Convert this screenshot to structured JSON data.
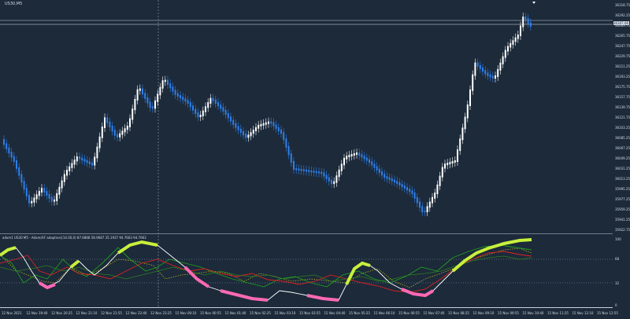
{
  "symbol_label": "US30,M5",
  "indicator_label": "adxm1 US30 M5 - Adxm(AF adaptive)(14.00,0) 87.6868 58.9687 35.1937 94.7663 94.7663",
  "current_price": "36307.66",
  "price_axis": [
    "36318.75",
    "36292.25",
    "36283.75",
    "36265.75",
    "36247.75",
    "36229.75",
    "36211.25",
    "36193.25",
    "36175.75",
    "36157.75",
    "36139.75",
    "36121.75",
    "36103.25",
    "36085.25",
    "36067.25",
    "36049.25",
    "36031.25",
    "36013.25",
    "35995.25",
    "35977.25",
    "35959.25",
    "35941.25",
    "35922.75"
  ],
  "indicator_axis": [
    "100",
    "68",
    "32",
    "0"
  ],
  "time_axis": [
    "12 Nov 2021",
    "12 Nov 19:40",
    "12 Nov 20:25",
    "12 Nov 21:10",
    "12 Nov 21:55",
    "12 Nov 22:40",
    "12 Nov 23:25",
    "15 Nov 00:10",
    "15 Nov 00:55",
    "15 Nov 01:40",
    "15 Nov 02:25",
    "15 Nov 03:10",
    "15 Nov 03:55",
    "15 Nov 04:40",
    "15 Nov 05:25",
    "15 Nov 06:10",
    "15 Nov 06:55",
    "15 Nov 07:40",
    "15 Nov 08:25",
    "15 Nov 09:10",
    "15 Nov 09:55",
    "15 Nov 10:40",
    "15 Nov 11:25",
    "15 Nov 12:10",
    "15 Nov 12:55"
  ],
  "colors": {
    "background": "#1c2a3a",
    "bull_candle": "#ffffff",
    "bear_candle": "#2f7fe8",
    "axis_text": "#d6dde6",
    "grid_dotted": "#8da1b5",
    "indicator_pink": "#ff69b4",
    "indicator_lime": "#c8f03c",
    "indicator_white": "#ffffff",
    "indicator_red": "#e02020",
    "indicator_green": "#1f9d1f",
    "indicator_dark_green": "#2f7f1f",
    "indicator_olive": "#b0b020"
  }
}
